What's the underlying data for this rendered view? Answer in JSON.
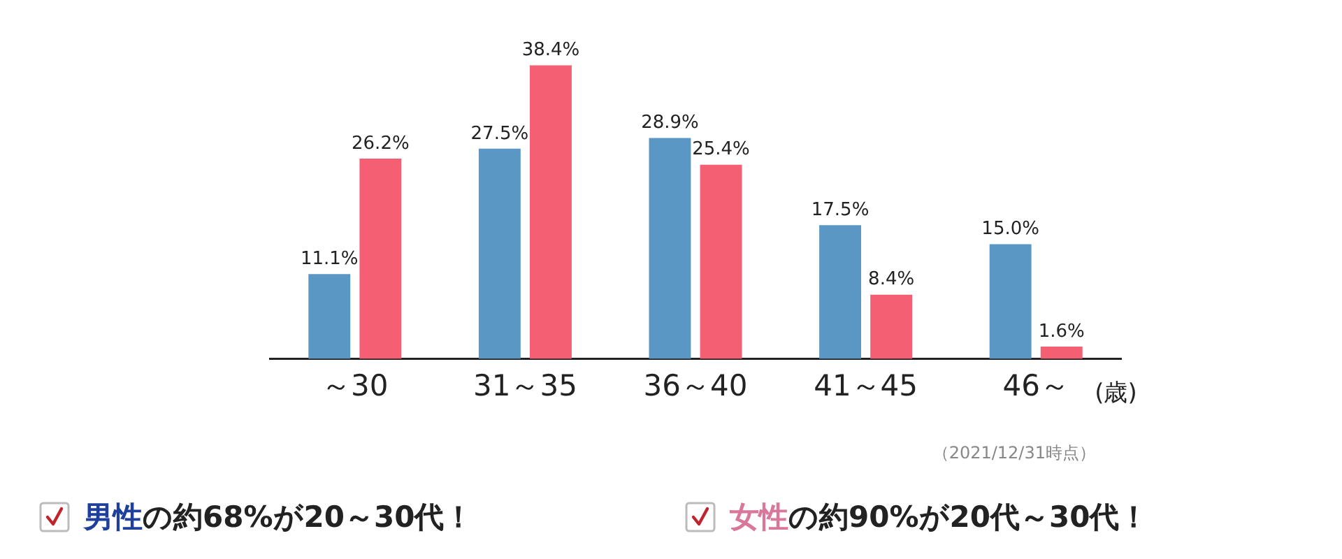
{
  "chart_data": {
    "type": "bar",
    "categories": [
      "～30",
      "31～35",
      "36～40",
      "41～45",
      "46～"
    ],
    "xlabel": "(歳)",
    "series": [
      {
        "color": "#5b97c4",
        "values": [
          11.1,
          27.5,
          28.9,
          17.5,
          15.0
        ],
        "value_labels": [
          "11.1%",
          "27.5%",
          "28.9%",
          "17.5%",
          "15.0%"
        ]
      },
      {
        "color": "#f55f74",
        "values": [
          26.2,
          38.4,
          25.4,
          8.4,
          1.6
        ],
        "value_labels": [
          "26.2%",
          "38.4%",
          "25.4%",
          "8.4%",
          "1.6%"
        ]
      }
    ],
    "annotations": [
      "（2021/12/31時点）",
      "男性の約68%が20～30代！",
      "女性の約90%が20代～30代！"
    ]
  }
}
